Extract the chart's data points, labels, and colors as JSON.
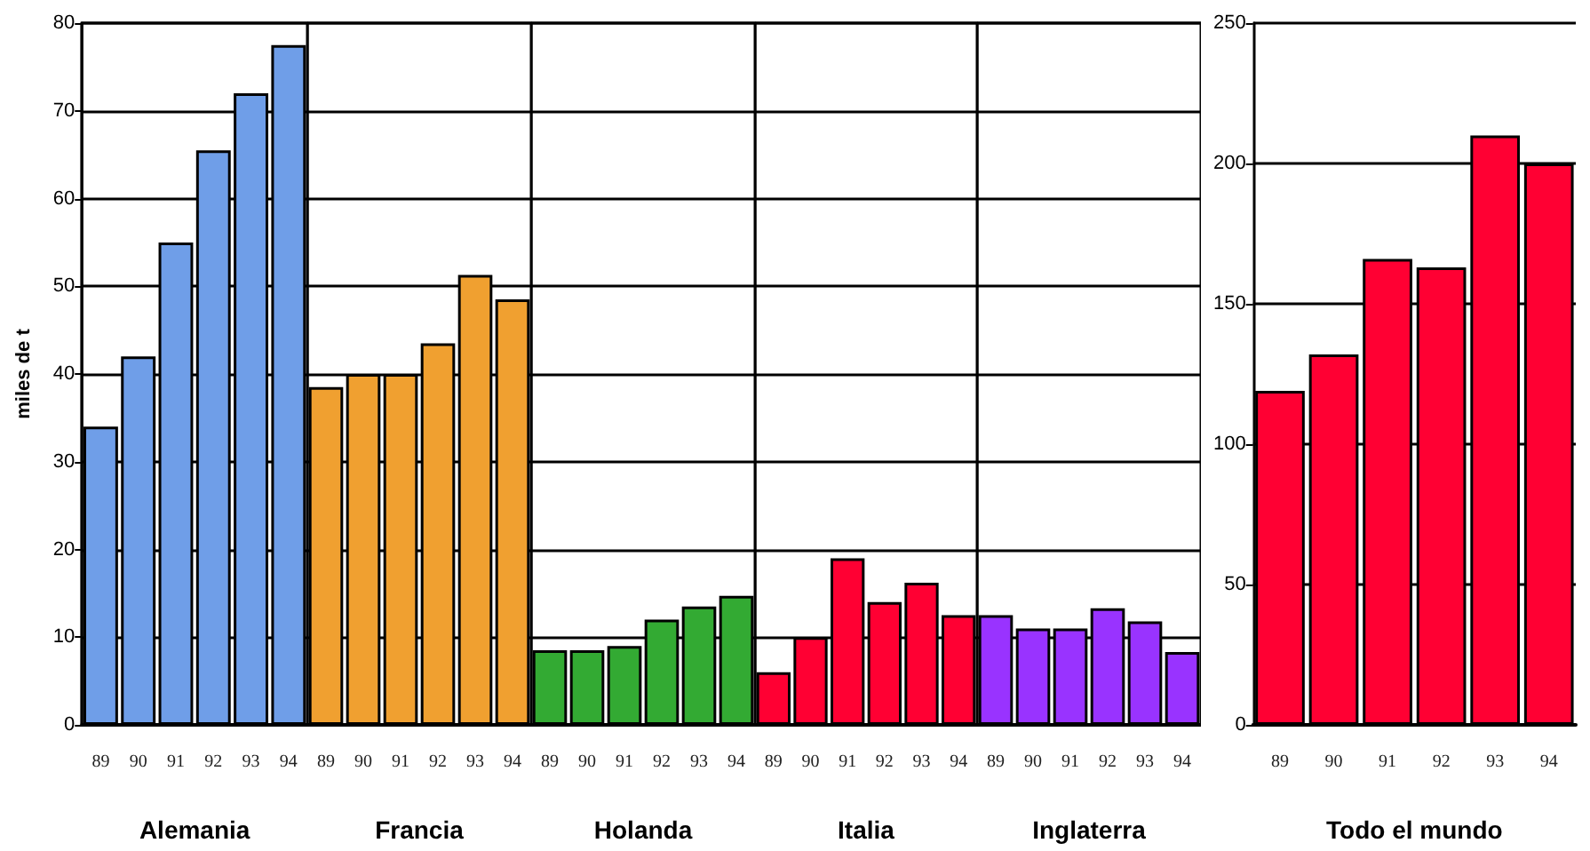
{
  "chart_data": [
    {
      "type": "bar",
      "categories": [
        "89",
        "90",
        "91",
        "92",
        "93",
        "94"
      ],
      "values": [
        34,
        42,
        55,
        65.5,
        72,
        77.5
      ],
      "color": "#6f9ee8",
      "xlabel": "Alemania",
      "ylabel": "miles de t",
      "ylim": [
        0,
        80
      ],
      "yticks": [
        0,
        10,
        20,
        30,
        40,
        50,
        60,
        70,
        80
      ],
      "grid": "y"
    },
    {
      "type": "bar",
      "categories": [
        "89",
        "90",
        "91",
        "92",
        "93",
        "94"
      ],
      "values": [
        38.5,
        40,
        40,
        43.5,
        51.3,
        48.5
      ],
      "color": "#f0a030",
      "xlabel": "Francia",
      "ylim": [
        0,
        80
      ],
      "yticks": [
        0,
        10,
        20,
        30,
        40,
        50,
        60,
        70,
        80
      ],
      "grid": "y",
      "tick_labels": "x"
    },
    {
      "type": "bar",
      "categories": [
        "89",
        "90",
        "91",
        "92",
        "93",
        "94"
      ],
      "values": [
        8.5,
        8.5,
        9,
        12,
        13.5,
        14.7
      ],
      "color": "#33aa33",
      "xlabel": "Holanda",
      "ylim": [
        0,
        80
      ],
      "yticks": [
        0,
        10,
        20,
        30,
        40,
        50,
        60,
        70,
        80
      ],
      "grid": "y",
      "tick_labels": "x"
    },
    {
      "type": "bar",
      "categories": [
        "89",
        "90",
        "91",
        "92",
        "93",
        "94"
      ],
      "values": [
        6,
        10,
        19,
        14,
        16.2,
        12.5
      ],
      "color": "#ff0033",
      "xlabel": "Italia",
      "ylim": [
        0,
        80
      ],
      "yticks": [
        0,
        10,
        20,
        30,
        40,
        50,
        60,
        70,
        80
      ],
      "grid": "y",
      "tick_labels": "x"
    },
    {
      "type": "bar",
      "categories": [
        "89",
        "90",
        "91",
        "92",
        "93",
        "94"
      ],
      "values": [
        12.5,
        11,
        11,
        13.3,
        11.8,
        8.3
      ],
      "color": "#9933ff",
      "xlabel": "Inglaterra",
      "ylim": [
        0,
        80
      ],
      "yticks": [
        0,
        10,
        20,
        30,
        40,
        50,
        60,
        70,
        80
      ],
      "grid": "y",
      "tick_labels": "x"
    },
    {
      "type": "bar",
      "categories": [
        "89",
        "90",
        "91",
        "92",
        "93",
        "94"
      ],
      "values": [
        119,
        132,
        166,
        163,
        210,
        200
      ],
      "color": "#ff0033",
      "xlabel": "Todo el mundo",
      "ylim": [
        0,
        250
      ],
      "yticks": [
        0,
        50,
        100,
        150,
        200,
        250
      ],
      "grid": "y"
    }
  ]
}
